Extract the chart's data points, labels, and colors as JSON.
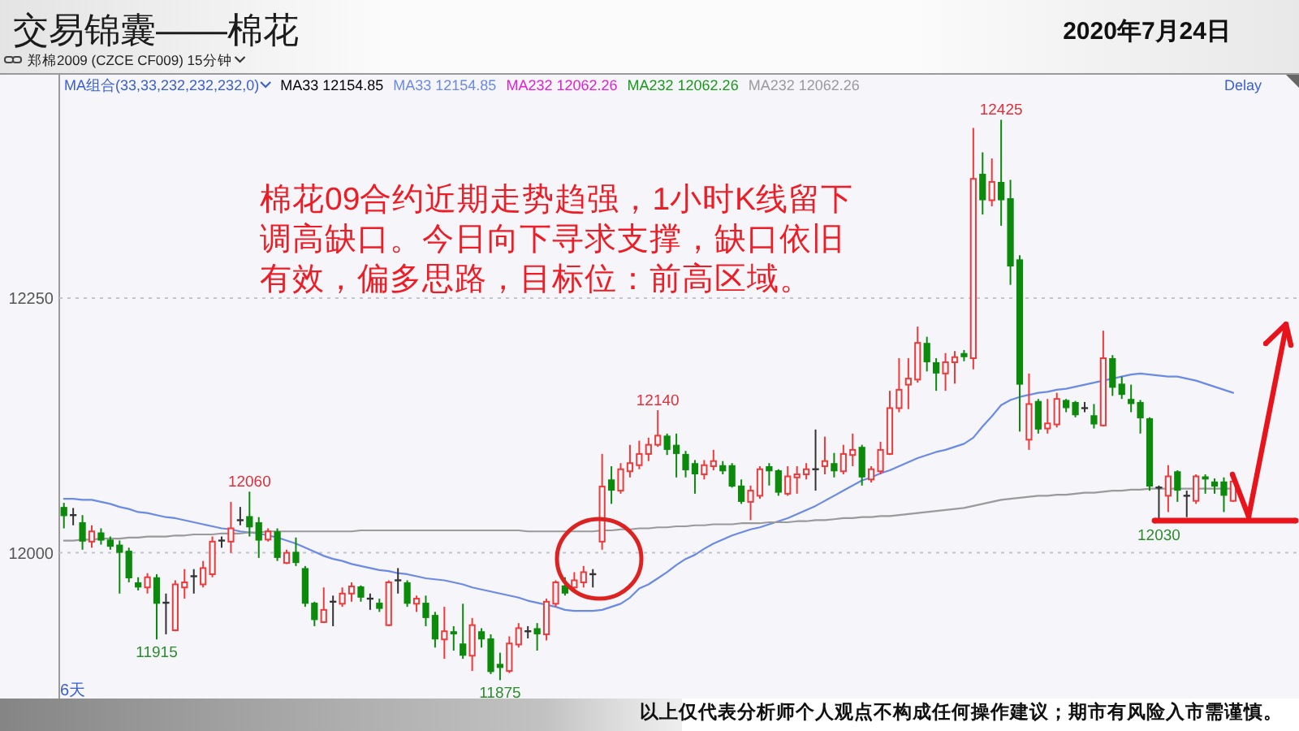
{
  "chart_data": {
    "type": "candlestick",
    "title": "交易锦囊——棉花",
    "subtitle": "2020年7月24日",
    "xlabel": "6天",
    "legend_title": "MA组合(33,33,232,232,232,0)",
    "legend": "top left",
    "grid": "y",
    "ylim": [
      11857,
      12470
    ],
    "yticks": [
      12000,
      12250
    ],
    "annotations": [
      "郑棉2009 (CZCE CF009) 15分钟",
      "Delay",
      "棉花09合约近期走势趋强，1小时K线留下调高缺口。今日向下寻求支撑，缺口依旧有效，偏多思路，目标位：前高区域。",
      "以上仅代表分析师个人观点不构成任何操作建议；期市有风险入市需谨慎。",
      {
        "text": "12060",
        "y": 12060
      },
      {
        "text": "11915",
        "y": 11915
      },
      {
        "text": "11875",
        "y": 11875
      },
      {
        "text": "12140",
        "y": 12140
      },
      {
        "text": "12425",
        "y": 12425
      },
      {
        "text": "12030",
        "y": 12030
      }
    ],
    "categories": [
      null,
      null,
      null,
      null,
      null,
      null,
      null,
      null,
      null,
      null,
      null,
      null,
      null,
      null,
      null,
      null,
      null,
      null,
      null,
      null,
      null,
      null,
      null,
      null,
      null,
      null,
      null,
      null,
      null,
      null,
      null,
      null,
      null,
      null,
      null,
      null,
      null,
      null,
      null,
      null,
      null,
      null,
      null,
      null,
      null,
      null,
      null,
      null,
      null,
      null,
      null,
      null,
      null,
      null,
      null,
      null,
      null,
      null,
      null,
      null,
      null,
      null,
      null,
      null,
      null,
      null,
      null,
      null,
      null,
      null,
      null,
      null,
      null,
      null,
      null,
      null,
      null,
      null,
      null,
      null,
      null,
      null,
      null,
      null,
      null,
      null,
      null,
      null,
      null,
      null,
      null,
      null,
      null,
      null,
      null,
      null,
      null,
      null,
      null,
      null,
      null,
      null,
      null,
      null,
      null,
      null,
      null,
      null,
      null,
      null,
      null,
      null,
      null,
      null,
      null,
      null,
      null,
      null,
      null,
      null,
      null,
      null,
      null,
      null,
      null,
      null,
      null
    ],
    "series": [
      {
        "type": "candlestick",
        "colors": [
          "#0b8a0b",
          "#333333",
          "#0b8a0b",
          "#ee3a3a",
          "#0b8a0b",
          "#0b8a0b",
          "#0b8a0b",
          "#0b8a0b",
          "#0b8a0b",
          "#ee3a3a",
          "#0b8a0b",
          "#333333",
          "#ee3a3a",
          "#ee3a3a",
          "#333333",
          "#ee3a3a",
          "#ee3a3a",
          "#333333",
          "#ee3a3a",
          "#333333",
          "#0b8a0b",
          "#0b8a0b",
          "#ee3a3a",
          "#0b8a0b",
          "#ee3a3a",
          "#0b8a0b",
          "#0b8a0b",
          "#0b8a0b",
          "#ee3a3a",
          "#333333",
          "#ee3a3a",
          "#ee3a3a",
          "#0b8a0b",
          "#333333",
          "#0b8a0b",
          "#ee3a3a",
          "#333333",
          "#0b8a0b",
          "#ee3a3a",
          "#0b8a0b",
          "#0b8a0b",
          "#ee3a3a",
          "#0b8a0b",
          "#0b8a0b",
          "#ee3a3a",
          "#0b8a0b",
          "#0b8a0b",
          "#0b8a0b",
          "#ee3a3a",
          "#ee3a3a",
          "#333333",
          "#0b8a0b",
          "#ee3a3a",
          "#ee3a3a",
          "#0b8a0b",
          "#ee3a3a",
          "#ee3a3a",
          "#333333",
          "#ee3a3a",
          "#0b8a0b",
          "#ee3a3a",
          "#ee3a3a",
          "#ee3a3a",
          "#ee3a3a",
          "#ee3a3a",
          "#0b8a0b",
          "#0b8a0b",
          "#0b8a0b",
          "#0b8a0b",
          "#ee3a3a",
          "#ee3a3a",
          "#0b8a0b",
          "#0b8a0b",
          "#0b8a0b",
          "#ee3a3a",
          "#ee3a3a",
          "#0b8a0b",
          "#0b8a0b",
          "#ee3a3a",
          "#ee3a3a",
          "#ee3a3a",
          "#333333",
          "#ee3a3a",
          "#0b8a0b",
          "#ee3a3a",
          "#ee3a3a",
          "#0b8a0b",
          "#ee3a3a",
          "#ee3a3a",
          "#ee3a3a",
          "#ee3a3a",
          "#ee3a3a",
          "#ee3a3a",
          "#0b8a0b",
          "#0b8a0b",
          "#ee3a3a",
          "#ee3a3a",
          "#0b8a0b",
          "#ee3a3a",
          "#0b8a0b",
          "#ee3a3a",
          "#0b8a0b",
          "#0b8a0b",
          "#0b8a0b",
          "#ee3a3a",
          "#0b8a0b",
          "#ee3a3a",
          "#ee3a3a",
          "#0b8a0b",
          "#0b8a0b",
          "#333333",
          "#0b8a0b",
          "#ee3a3a",
          "#0b8a0b",
          "#0b8a0b",
          "#0b8a0b",
          "#0b8a0b",
          "#0b8a0b",
          "#333333",
          "#ee3a3a",
          "#0b8a0b",
          "#333333",
          "#ee3a3a",
          "#0b8a0b",
          "#0b8a0b",
          "#0b8a0b",
          "#ee3a3a"
        ],
        "ohlc": [
          [
            12045,
            12049,
            12024,
            12036
          ],
          [
            12037,
            12044,
            12027,
            12037
          ],
          [
            12030,
            12037,
            12003,
            12011
          ],
          [
            12011,
            12027,
            12005,
            12021
          ],
          [
            12020,
            12024,
            12008,
            12012
          ],
          [
            12013,
            12016,
            12003,
            12006
          ],
          [
            12008,
            12012,
            11960,
            12000
          ],
          [
            12002,
            12005,
            11971,
            11975
          ],
          [
            11971,
            11976,
            11963,
            11966
          ],
          [
            11966,
            11980,
            11960,
            11976
          ],
          [
            11976,
            11979,
            11915,
            11950
          ],
          [
            11951,
            11960,
            11920,
            11951
          ],
          [
            11924,
            11973,
            11923,
            11969
          ],
          [
            11966,
            11984,
            11955,
            11971
          ],
          [
            11977,
            11984,
            11960,
            11977
          ],
          [
            11969,
            11992,
            11966,
            11985
          ],
          [
            11979,
            12016,
            11976,
            12011
          ],
          [
            12012,
            12016,
            12005,
            12012
          ],
          [
            12011,
            12050,
            12000,
            12024
          ],
          [
            12032,
            12045,
            12027,
            12032
          ],
          [
            12036,
            12060,
            12016,
            12025
          ],
          [
            12030,
            12035,
            11995,
            12012
          ],
          [
            12013,
            12024,
            12011,
            12021
          ],
          [
            12021,
            12024,
            11992,
            11995
          ],
          [
            11990,
            12003,
            11989,
            12000
          ],
          [
            12001,
            12015,
            11987,
            11990
          ],
          [
            11985,
            11987,
            11947,
            11950
          ],
          [
            11951,
            11952,
            11928,
            11934
          ],
          [
            11932,
            11966,
            11931,
            11944
          ],
          [
            11952,
            11958,
            11928,
            11952
          ],
          [
            11950,
            11966,
            11947,
            11960
          ],
          [
            11960,
            11971,
            11952,
            11967
          ],
          [
            11967,
            11968,
            11952,
            11956
          ],
          [
            11955,
            11960,
            11944,
            11955
          ],
          [
            11951,
            11955,
            11942,
            11945
          ],
          [
            11929,
            11973,
            11928,
            11971
          ],
          [
            11973,
            11985,
            11960,
            11973
          ],
          [
            11971,
            11973,
            11947,
            11950
          ],
          [
            11950,
            11958,
            11942,
            11955
          ],
          [
            11951,
            11958,
            11928,
            11936
          ],
          [
            11939,
            11942,
            11907,
            11915
          ],
          [
            11915,
            11947,
            11896,
            11923
          ],
          [
            11923,
            11928,
            11904,
            11920
          ],
          [
            11911,
            11950,
            11896,
            11899
          ],
          [
            11899,
            11936,
            11884,
            11929
          ],
          [
            11923,
            11926,
            11907,
            11915
          ],
          [
            11916,
            11920,
            11881,
            11883
          ],
          [
            11891,
            11902,
            11875,
            11887
          ],
          [
            11884,
            11918,
            11882,
            11911
          ],
          [
            11910,
            11931,
            11907,
            11926
          ],
          [
            11923,
            11928,
            11916,
            11923
          ],
          [
            11926,
            11931,
            11904,
            11920
          ],
          [
            11920,
            11955,
            11914,
            11952
          ],
          [
            11950,
            11973,
            11947,
            11971
          ],
          [
            11968,
            11976,
            11958,
            11960
          ],
          [
            11966,
            11981,
            11963,
            11973
          ],
          [
            11971,
            11987,
            11966,
            11981
          ],
          [
            11979,
            11984,
            11966,
            11979
          ],
          [
            12011,
            12097,
            12003,
            12065
          ],
          [
            12072,
            12085,
            12048,
            12061
          ],
          [
            12061,
            12088,
            12058,
            12082
          ],
          [
            12080,
            12106,
            12074,
            12088
          ],
          [
            12086,
            12110,
            12082,
            12097
          ],
          [
            12097,
            12113,
            12090,
            12106
          ],
          [
            12106,
            12140,
            12104,
            12115
          ],
          [
            12115,
            12117,
            12096,
            12101
          ],
          [
            12106,
            12117,
            12074,
            12097
          ],
          [
            12097,
            12100,
            12074,
            12081
          ],
          [
            12088,
            12091,
            12058,
            12077
          ],
          [
            12077,
            12091,
            12072,
            12086
          ],
          [
            12085,
            12101,
            12081,
            12090
          ],
          [
            12086,
            12090,
            12077,
            12080
          ],
          [
            12086,
            12088,
            12064,
            12065
          ],
          [
            12066,
            12072,
            12048,
            12050
          ],
          [
            12050,
            12066,
            12032,
            12061
          ],
          [
            12056,
            12085,
            12053,
            12082
          ],
          [
            12085,
            12088,
            12066,
            12080
          ],
          [
            12081,
            12082,
            12056,
            12059
          ],
          [
            12058,
            12085,
            12056,
            12075
          ],
          [
            12074,
            12085,
            12058,
            12077
          ],
          [
            12077,
            12088,
            12072,
            12082
          ],
          [
            12082,
            12121,
            12061,
            12082
          ],
          [
            12085,
            12114,
            12077,
            12090
          ],
          [
            12088,
            12098,
            12074,
            12080
          ],
          [
            12080,
            12106,
            12077,
            12097
          ],
          [
            12096,
            12117,
            12085,
            12101
          ],
          [
            12104,
            12106,
            12066,
            12074
          ],
          [
            12072,
            12085,
            12069,
            12082
          ],
          [
            12080,
            12109,
            12077,
            12101
          ],
          [
            12097,
            12159,
            12096,
            12142
          ],
          [
            12142,
            12191,
            12138,
            12160
          ],
          [
            12165,
            12191,
            12141,
            12171
          ],
          [
            12170,
            12222,
            12167,
            12206
          ],
          [
            12206,
            12212,
            12178,
            12187
          ],
          [
            12187,
            12191,
            12159,
            12176
          ],
          [
            12176,
            12196,
            12159,
            12187
          ],
          [
            12187,
            12198,
            12166,
            12192
          ],
          [
            12196,
            12199,
            12188,
            12192
          ],
          [
            12191,
            12417,
            12180,
            12367
          ],
          [
            12372,
            12393,
            12332,
            12346
          ],
          [
            12346,
            12387,
            12340,
            12364
          ],
          [
            12364,
            12425,
            12321,
            12346
          ],
          [
            12348,
            12366,
            12263,
            12281
          ],
          [
            12288,
            12292,
            12119,
            12165
          ],
          [
            12111,
            12176,
            12101,
            12146
          ],
          [
            12149,
            12151,
            12117,
            12121
          ],
          [
            12122,
            12151,
            12117,
            12127
          ],
          [
            12126,
            12157,
            12123,
            12151
          ],
          [
            12150,
            12151,
            12138,
            12142
          ],
          [
            12148,
            12149,
            12133,
            12135
          ],
          [
            12142,
            12148,
            12138,
            12142
          ],
          [
            12135,
            12146,
            12122,
            12126
          ],
          [
            12125,
            12218,
            12124,
            12191
          ],
          [
            12191,
            12194,
            12154,
            12162
          ],
          [
            12166,
            12173,
            12151,
            12155
          ],
          [
            12151,
            12165,
            12138,
            12146
          ],
          [
            12148,
            12150,
            12117,
            12132
          ],
          [
            12132,
            12133,
            12061,
            12065
          ],
          [
            12064,
            12066,
            12030,
            12064
          ],
          [
            12056,
            12086,
            12040,
            12075
          ],
          [
            12080,
            12081,
            12050,
            12061
          ],
          [
            12056,
            12061,
            12035,
            12056
          ],
          [
            12051,
            12077,
            12048,
            12075
          ],
          [
            12075,
            12077,
            12058,
            12072
          ],
          [
            12070,
            12073,
            12058,
            12065
          ],
          [
            12070,
            12074,
            12040,
            12056
          ],
          [
            12051,
            12074,
            12050,
            12070
          ]
        ]
      },
      {
        "type": "line",
        "name": "MA33 12154.85",
        "values": [
          null,
          null,
          null,
          null,
          null,
          null,
          null,
          null,
          null,
          null,
          null,
          null,
          null,
          null,
          null,
          null,
          null,
          null,
          null,
          null,
          null,
          null,
          null,
          null,
          null,
          null,
          null,
          null,
          null,
          null,
          null,
          null,
          null,
          null,
          null,
          null,
          null,
          null,
          null,
          null,
          null,
          null,
          null,
          null,
          null,
          null,
          null,
          null,
          null,
          null,
          null,
          null,
          null,
          null,
          null,
          null,
          null,
          null,
          null,
          null,
          null,
          null,
          null,
          null,
          null,
          null,
          null,
          null,
          null,
          null,
          null,
          null,
          null,
          null,
          null,
          null,
          null,
          null,
          null,
          null,
          null,
          null,
          null,
          null,
          null,
          null,
          null,
          null,
          null,
          null,
          null,
          null,
          null,
          null,
          null,
          null,
          null,
          null,
          null,
          null,
          null,
          null,
          null,
          null,
          null,
          null,
          null,
          null,
          null,
          null,
          null,
          null,
          null,
          null,
          null,
          null,
          null,
          null,
          null,
          null,
          null,
          null,
          null,
          null,
          null,
          null,
          null
        ]
      },
      {
        "type": "line",
        "name": "MA33 12154.85",
        "color": "#6a8ae6",
        "values": [
          12053,
          12053,
          12052,
          12052,
          12050,
          12048,
          12045,
          12043,
          12040,
          12039,
          12037,
          12035,
          12034,
          12032,
          12030,
          12028,
          12026,
          12024,
          12023,
          12021,
          12020,
          12019,
          12017,
          12015,
          12012,
          12009,
          12005,
          12001,
          11997,
          11994,
          11992,
          11989,
          11987,
          11985,
          11983,
          11982,
          11980,
          11979,
          11977,
          11975,
          11974,
          11973,
          11971,
          11969,
          11966,
          11964,
          11962,
          11960,
          11958,
          11956,
          11953,
          11951,
          11949,
          11947,
          11944,
          11943,
          11943,
          11943,
          11944,
          11947,
          11950,
          11956,
          11965,
          11969,
          11975,
          11981,
          11988,
          11994,
          11998,
          12004,
          12009,
          12013,
          12017,
          12020,
          12023,
          12025,
          12028,
          12031,
          12034,
          12038,
          12042,
          12046,
          12051,
          12056,
          12061,
          12066,
          12071,
          12074,
          12078,
          12081,
          12085,
          12089,
          12093,
          12096,
          12099,
          12101,
          12104,
          12107,
          12113,
          12124,
          12134,
          12145,
          12150,
          12153,
          12155,
          12157,
          12158,
          12160,
          12161,
          12163,
          12165,
          12167,
          12169,
          12171,
          12173,
          12175,
          12176,
          12175,
          12174,
          12173,
          12173,
          12171,
          12169,
          12166,
          12163,
          12160,
          12157
        ]
      },
      {
        "type": "line",
        "name": "MA232 12062.26",
        "color": "#e020d8",
        "values": [
          null,
          null,
          null,
          null,
          null,
          null,
          null,
          null,
          null,
          null,
          null,
          null,
          null,
          null,
          null,
          null,
          null,
          null,
          null,
          null,
          null,
          null,
          null,
          null,
          null,
          null,
          null,
          null,
          null,
          null,
          null,
          null,
          null,
          null,
          null,
          null,
          null,
          null,
          null,
          null,
          null,
          null,
          null,
          null,
          null,
          null,
          null,
          null,
          null,
          null,
          null,
          null,
          null,
          null,
          null,
          null,
          null,
          null,
          null,
          null,
          null,
          null,
          null,
          null,
          null,
          null,
          null,
          null,
          null,
          null,
          null,
          null,
          null,
          null,
          null,
          null,
          null,
          null,
          null,
          null,
          null,
          null,
          null,
          null,
          null,
          null,
          null,
          null,
          null,
          null,
          null,
          null,
          null,
          null,
          null,
          null,
          null,
          null,
          null,
          null,
          null,
          null,
          null,
          null,
          null,
          null,
          null,
          null,
          null,
          null,
          null,
          null,
          null,
          null,
          null,
          null,
          null,
          null,
          null,
          null,
          null,
          null,
          null,
          null,
          null,
          null,
          null
        ]
      },
      {
        "type": "line",
        "name": "MA232 12062.26",
        "color": "#1a9a1a",
        "values": [
          null,
          null,
          null,
          null,
          null,
          null,
          null,
          null,
          null,
          null,
          null,
          null,
          null,
          null,
          null,
          null,
          null,
          null,
          null,
          null,
          null,
          null,
          null,
          null,
          null,
          null,
          null,
          null,
          null,
          null,
          null,
          null,
          null,
          null,
          null,
          null,
          null,
          null,
          null,
          null,
          null,
          null,
          null,
          null,
          null,
          null,
          null,
          null,
          null,
          null,
          null,
          null,
          null,
          null,
          null,
          null,
          null,
          null,
          null,
          null,
          null,
          null,
          null,
          null,
          null,
          null,
          null,
          null,
          null,
          null,
          null,
          null,
          null,
          null,
          null,
          null,
          null,
          null,
          null,
          null,
          null,
          null,
          null,
          null,
          null,
          null,
          null,
          null,
          null,
          null,
          null,
          null,
          null,
          null,
          null,
          null,
          null,
          null,
          null,
          null,
          null,
          null,
          null,
          null,
          null,
          null,
          null,
          null,
          null,
          null,
          null,
          null,
          null,
          null,
          null,
          null,
          null,
          null,
          null,
          null,
          null,
          null,
          null,
          null,
          null,
          null,
          null
        ]
      },
      {
        "type": "line",
        "name": "MA232 12062.26",
        "color": "#9a9a9a",
        "values": [
          12012,
          12012,
          12013,
          12013,
          12014,
          12014,
          12014,
          12015,
          12015,
          12016,
          12016,
          12016,
          12017,
          12017,
          12018,
          12018,
          12018,
          12019,
          12019,
          12019,
          12020,
          12020,
          12021,
          12021,
          12021,
          12021,
          12021,
          12021,
          12021,
          12021,
          12021,
          12021,
          12022,
          12022,
          12022,
          12022,
          12022,
          12022,
          12022,
          12022,
          12022,
          12022,
          12022,
          12022,
          12022,
          12022,
          12022,
          12022,
          12022,
          12022,
          12021,
          12021,
          12021,
          12021,
          12021,
          12021,
          12021,
          12021,
          12022,
          12022,
          12023,
          12023,
          12024,
          12024,
          12025,
          12025,
          12026,
          12026,
          12027,
          12027,
          12028,
          12028,
          12028,
          12029,
          12029,
          12029,
          12030,
          12030,
          12030,
          12031,
          12031,
          12032,
          12032,
          12033,
          12034,
          12034,
          12035,
          12035,
          12036,
          12036,
          12037,
          12038,
          12039,
          12040,
          12041,
          12042,
          12043,
          12044,
          12046,
          12048,
          12050,
          12052,
          12053,
          12054,
          12055,
          12056,
          12056,
          12057,
          12057,
          12058,
          12059,
          12059,
          12060,
          12061,
          12061,
          12062,
          12062,
          12063,
          12063,
          12063,
          12063,
          12063,
          12063,
          12063,
          12063,
          12063,
          12063
        ]
      }
    ]
  }
}
